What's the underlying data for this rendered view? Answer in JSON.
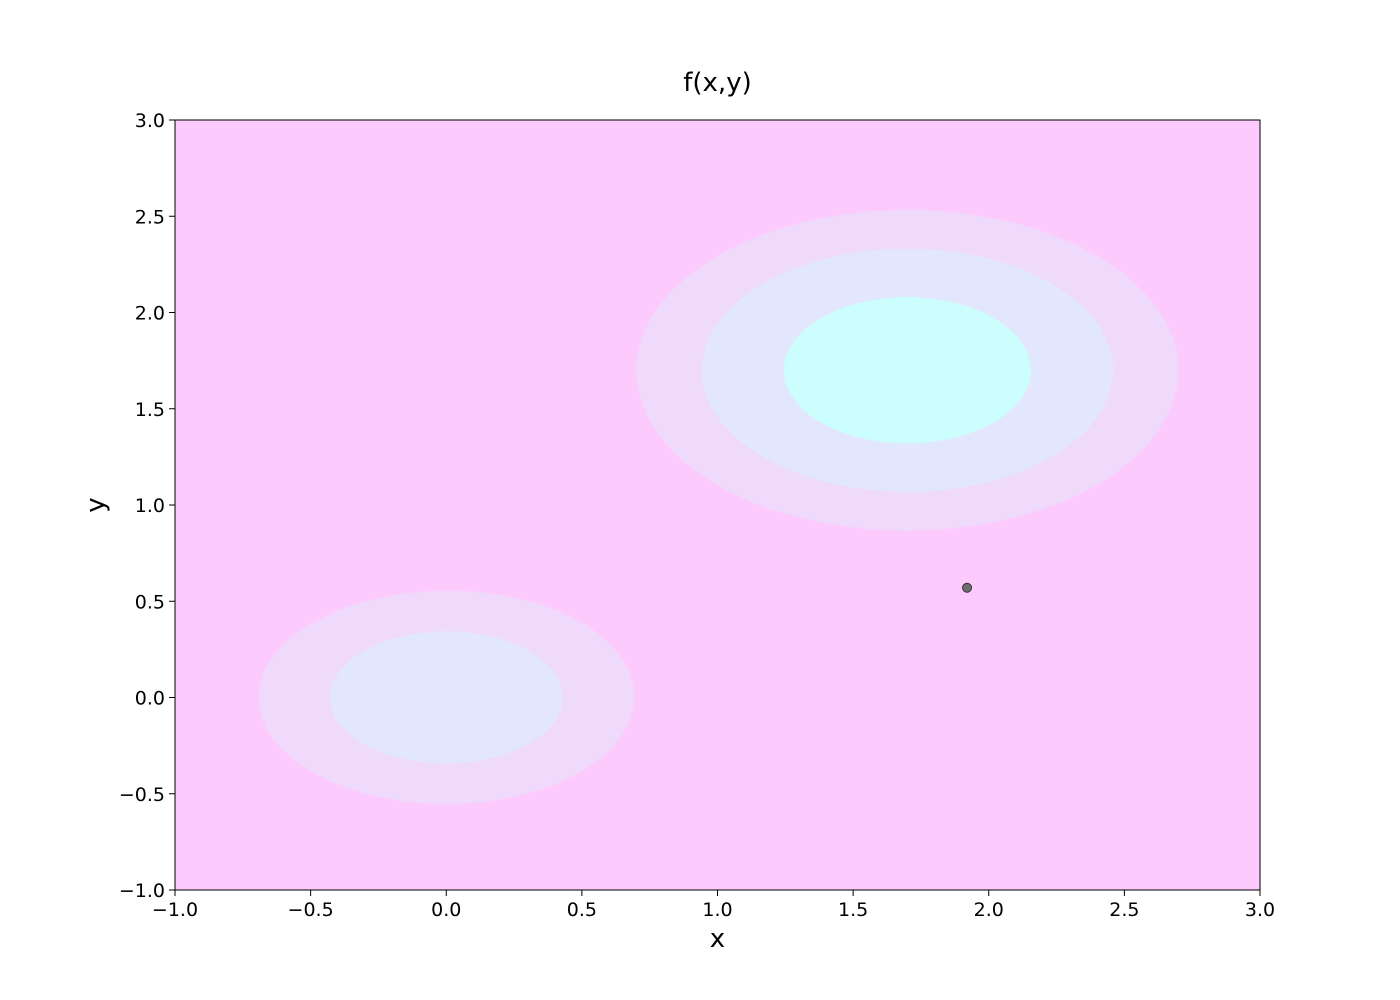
{
  "chart_data": {
    "type": "contour",
    "title": "f(x,y)",
    "xlabel": "x",
    "ylabel": "y",
    "xlim": [
      -1.0,
      3.0
    ],
    "ylim": [
      -1.0,
      3.0
    ],
    "x_ticks": [
      -1.0,
      -0.5,
      0.0,
      0.5,
      1.0,
      1.5,
      2.0,
      2.5,
      3.0
    ],
    "y_ticks": [
      -1.0,
      -0.5,
      0.0,
      0.5,
      1.0,
      1.5,
      2.0,
      2.5,
      3.0
    ],
    "x_tick_labels": [
      "−1.0",
      "−0.5",
      "0.0",
      "0.5",
      "1.0",
      "1.5",
      "2.0",
      "2.5",
      "3.0"
    ],
    "y_tick_labels": [
      "−1.0",
      "−0.5",
      "0.0",
      "0.5",
      "1.0",
      "1.5",
      "2.0",
      "2.5",
      "3.0"
    ],
    "function": {
      "peaks": [
        {
          "x": 1.7,
          "y": 1.7,
          "amplitude": 1.0,
          "sx": 0.6,
          "sy": 0.5
        },
        {
          "x": 0.0,
          "y": 0.0,
          "amplitude": 0.65,
          "sx": 0.5,
          "sy": 0.4
        }
      ]
    },
    "levels": [
      0.25,
      0.45,
      0.75
    ],
    "level_colors": [
      "#fdcafd",
      "#efdafc",
      "#e3e7fd",
      "#ccfefe"
    ],
    "points": [
      {
        "x": 1.92,
        "y": 0.57,
        "color": "#6e6e6e"
      }
    ],
    "grid": false
  }
}
